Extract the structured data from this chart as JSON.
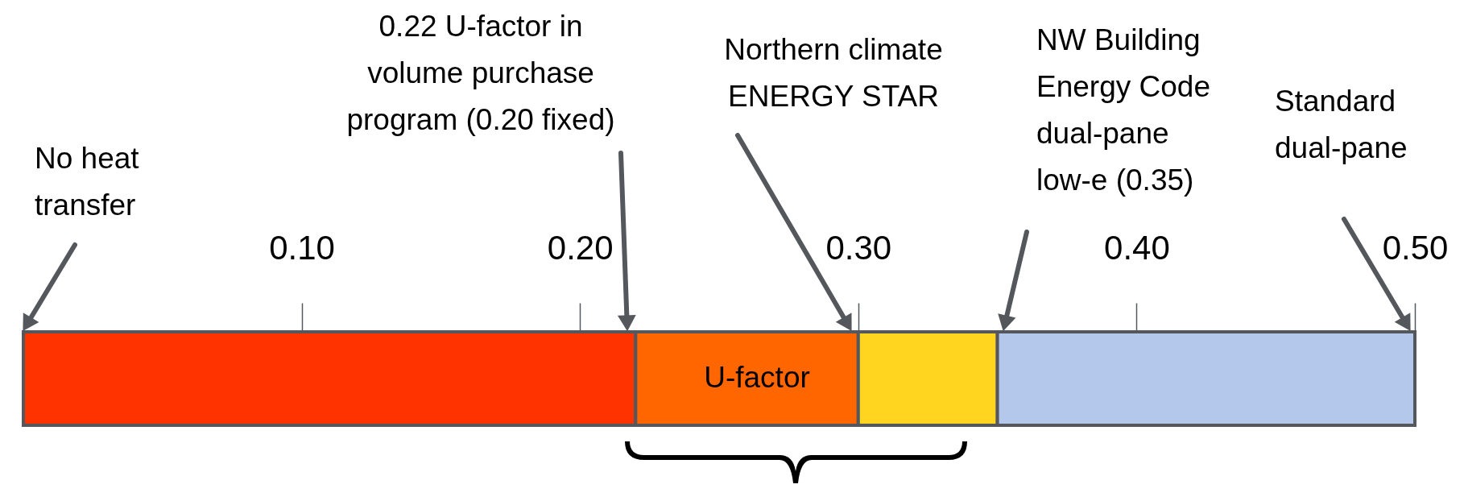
{
  "chart_data": {
    "type": "bar",
    "orientation": "horizontal",
    "stacked": true,
    "categories": [
      null
    ],
    "series": [
      {
        "color": "#ff3300",
        "values": [
          0.22
        ]
      },
      {
        "color": "#ff6600",
        "values": [
          0.08
        ]
      },
      {
        "color": "#ffd520",
        "values": [
          0.05
        ]
      },
      {
        "color": "#b4c8ec",
        "values": [
          0.15
        ]
      }
    ],
    "xlim": [
      0,
      0.5
    ],
    "xticks": [
      {
        "value": 0.1,
        "label": "0.10"
      },
      {
        "value": 0.2,
        "label": "0.20"
      },
      {
        "value": 0.3,
        "label": "0.30"
      },
      {
        "value": 0.4,
        "label": "0.40"
      },
      {
        "value": 0.5,
        "label": "0.50"
      }
    ],
    "annotations": [
      "No heat\ntransfer",
      "0.22 U-factor in\nvolume purchase\nprogram (0.20 fixed)",
      "Northern climate\nENERGY STAR",
      "NW Building\nEnergy Code\ndual-pane\nlow-e (0.35)",
      "Standard\ndual-pane",
      "U-factor"
    ]
  }
}
